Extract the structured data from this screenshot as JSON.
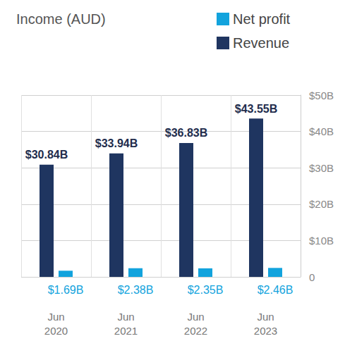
{
  "chart_data": {
    "type": "bar",
    "title": "Income (AUD)",
    "categories": [
      "Jun\n2020",
      "Jun\n2021",
      "Jun\n2022",
      "Jun\n2023"
    ],
    "series": [
      {
        "name": "Revenue",
        "color": "#1f3560",
        "values": [
          30.84,
          33.94,
          36.83,
          43.55
        ],
        "value_labels": [
          "$30.84B",
          "$33.94B",
          "$36.83B",
          "$43.55B"
        ]
      },
      {
        "name": "Net profit",
        "color": "#12a3dd",
        "values": [
          1.69,
          2.38,
          2.35,
          2.46
        ],
        "value_labels": [
          "$1.69B",
          "$2.38B",
          "$2.35B",
          "$2.46B"
        ]
      }
    ],
    "ylim": [
      0,
      50
    ],
    "yticks": [
      0,
      {
        "value": 10,
        "label": "$10B"
      },
      {
        "value": 20,
        "label": "$20B"
      },
      {
        "value": 30,
        "label": "$30B"
      },
      {
        "value": 40,
        "label": "$40B"
      },
      {
        "value": 50,
        "label": "$50B"
      }
    ],
    "grid": true,
    "legend": "top-right",
    "data_labels": true
  }
}
